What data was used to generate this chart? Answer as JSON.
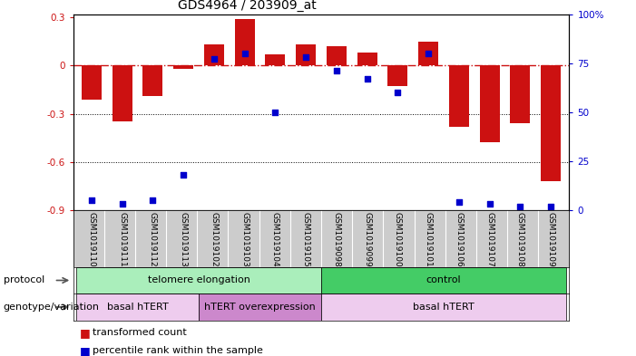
{
  "title": "GDS4964 / 203909_at",
  "samples": [
    "GSM1019110",
    "GSM1019111",
    "GSM1019112",
    "GSM1019113",
    "GSM1019102",
    "GSM1019103",
    "GSM1019104",
    "GSM1019105",
    "GSM1019098",
    "GSM1019099",
    "GSM1019100",
    "GSM1019101",
    "GSM1019106",
    "GSM1019107",
    "GSM1019108",
    "GSM1019109"
  ],
  "bar_values": [
    -0.21,
    -0.35,
    -0.19,
    -0.02,
    0.13,
    0.29,
    0.07,
    0.13,
    0.12,
    0.08,
    -0.13,
    0.15,
    -0.38,
    -0.48,
    -0.36,
    -0.72
  ],
  "dot_values": [
    5,
    3,
    5,
    18,
    77,
    80,
    50,
    78,
    71,
    67,
    60,
    80,
    4,
    3,
    2,
    2
  ],
  "ylim_left": [
    -0.9,
    0.32
  ],
  "ylim_right": [
    0,
    100
  ],
  "yticks_left": [
    -0.9,
    -0.6,
    -0.3,
    0.0,
    0.3
  ],
  "yticks_right": [
    0,
    25,
    50,
    75,
    100
  ],
  "ytick_labels_left": [
    "-0.9",
    "-0.6",
    "-0.3",
    "0",
    "0.3"
  ],
  "ytick_labels_right": [
    "0",
    "25",
    "50",
    "75",
    "100%"
  ],
  "bar_color": "#cc1111",
  "dot_color": "#0000cc",
  "hline_color": "#cc1111",
  "grid_color": "#000000",
  "protocol_label": "protocol",
  "genotype_label": "genotype/variation",
  "protocol_groups": [
    {
      "label": "telomere elongation",
      "start": 0,
      "end": 7,
      "color": "#aaeebb"
    },
    {
      "label": "control",
      "start": 8,
      "end": 15,
      "color": "#44cc66"
    }
  ],
  "genotype_groups": [
    {
      "label": "basal hTERT",
      "start": 0,
      "end": 3,
      "color": "#eeccee"
    },
    {
      "label": "hTERT overexpression",
      "start": 4,
      "end": 7,
      "color": "#cc88cc"
    },
    {
      "label": "basal hTERT",
      "start": 8,
      "end": 15,
      "color": "#eeccee"
    }
  ],
  "legend_bar_label": "transformed count",
  "legend_dot_label": "percentile rank within the sample",
  "bg_color": "#ffffff",
  "tick_area_color": "#cccccc"
}
